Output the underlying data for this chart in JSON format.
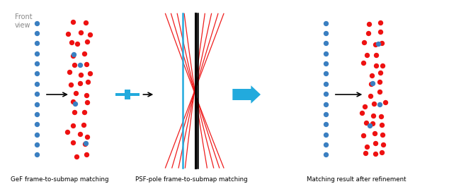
{
  "background_color": "#ffffff",
  "fig_width": 6.34,
  "fig_height": 2.68,
  "dpi": 100,
  "label1": "GeF frame-to-submap matching",
  "label2": "PSF-pole frame-to-submap matching",
  "label3": "Matching result after refinement",
  "front_view_text": "Front\nview",
  "blue_color": "#3a7fc1",
  "red_color": "#ee1111",
  "cyan_color": "#22aadd",
  "black_color": "#000000",
  "dot_size": 28,
  "n_rows": 14
}
